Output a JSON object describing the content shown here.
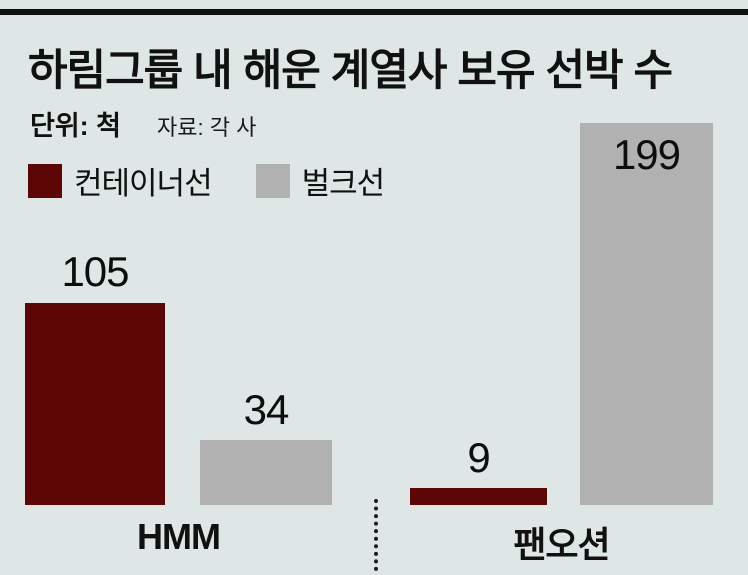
{
  "colors": {
    "background": "#dee6e6",
    "container_ship": "#5e0606",
    "bulk_ship": "#b1b1b1",
    "rule": "#101010"
  },
  "header": {
    "title": "하림그룹 내 해운 계열사 보유 선박 수",
    "unit_label": "단위: 척",
    "source_label": "자료: 각 사"
  },
  "chart_data": {
    "type": "bar",
    "title": "하림그룹 내 해운 계열사 보유 선박 수",
    "unit": "척",
    "source": "각 사",
    "categories": [
      "HMM",
      "팬오션"
    ],
    "series": [
      {
        "name": "컨테이너선",
        "color": "#5e0606",
        "values": [
          105,
          9
        ]
      },
      {
        "name": "벌크선",
        "color": "#b1b1b1",
        "values": [
          34,
          199
        ]
      }
    ],
    "ylim": [
      0,
      210
    ],
    "grid": false,
    "legend_position": "top-left",
    "value_labels_shown": true
  }
}
